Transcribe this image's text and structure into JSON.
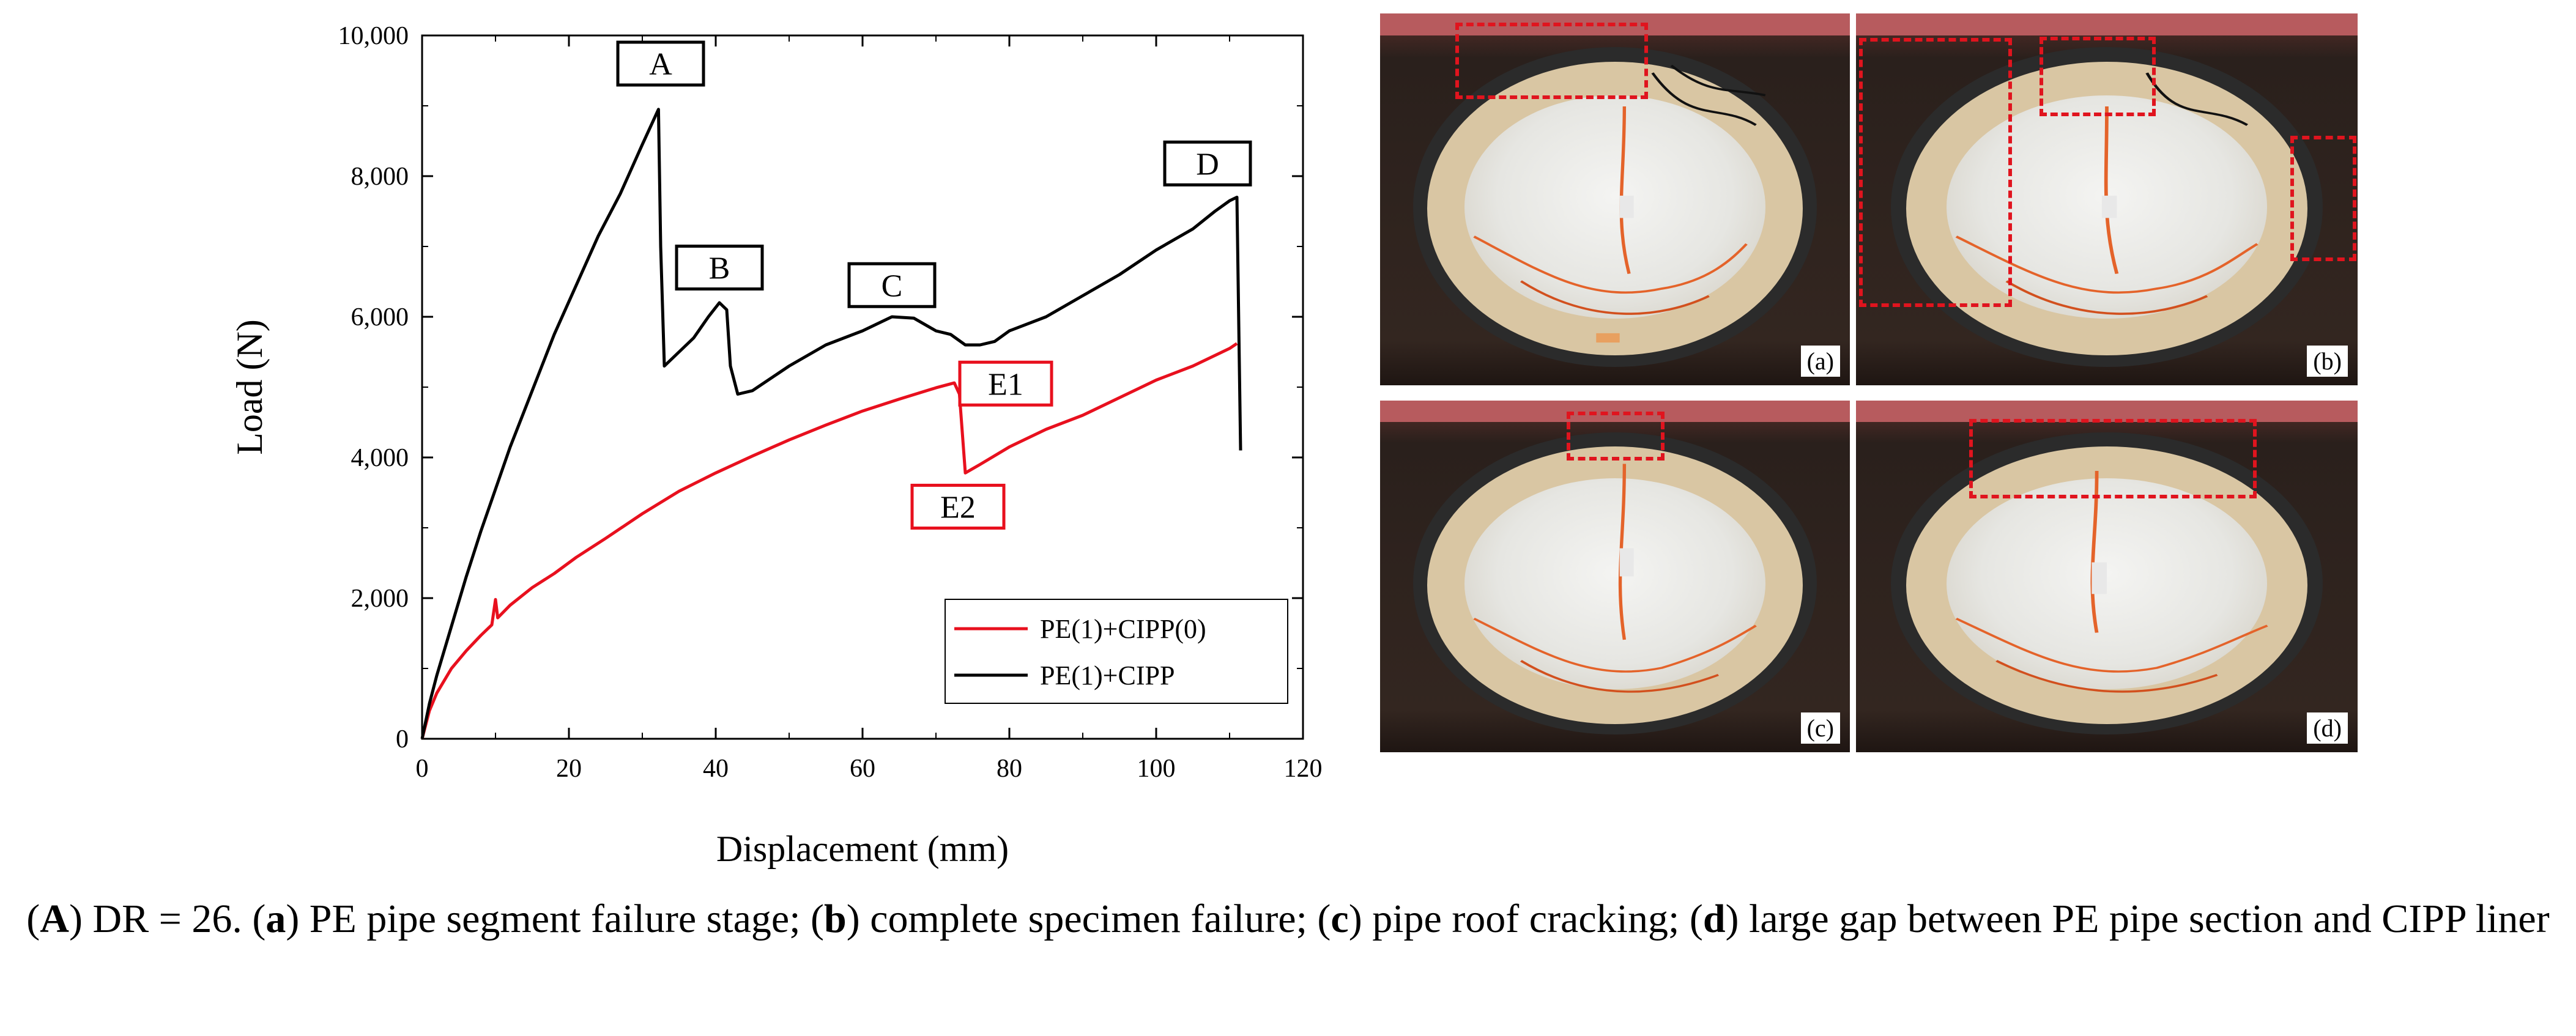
{
  "chart_data": {
    "type": "line",
    "xlabel": "Displacement (mm)",
    "ylabel": "Load (N)",
    "xlim": [
      0,
      120
    ],
    "ylim": [
      0,
      10000
    ],
    "x_ticks": [
      "0",
      "20",
      "40",
      "60",
      "80",
      "100",
      "120"
    ],
    "y_ticks": [
      "0",
      "2,000",
      "4,000",
      "6,000",
      "8,000",
      "10,000"
    ],
    "grid": false,
    "legend_position": "bottom-right",
    "series": [
      {
        "name": "PE(1)+CIPP(0)",
        "color": "#e8101e",
        "x": [
          0,
          1,
          2,
          4,
          6,
          8,
          9.5,
          10,
          10.3,
          12,
          15,
          18,
          21,
          25,
          30,
          35,
          40,
          45,
          50,
          55,
          60,
          65,
          70,
          72.5,
          73.2,
          74,
          76,
          80,
          85,
          90,
          95,
          100,
          105,
          110,
          111
        ],
        "y": [
          0,
          400,
          650,
          1000,
          1250,
          1470,
          1620,
          1980,
          1720,
          1900,
          2150,
          2350,
          2580,
          2850,
          3200,
          3520,
          3780,
          4020,
          4250,
          4460,
          4660,
          4830,
          4990,
          5060,
          4900,
          3780,
          3900,
          4150,
          4400,
          4600,
          4850,
          5100,
          5300,
          5550,
          5620
        ]
      },
      {
        "name": "PE(1)+CIPP",
        "color": "#000000",
        "x": [
          0,
          1,
          2,
          4,
          6,
          8,
          10,
          12,
          15,
          18,
          21,
          24,
          27,
          30,
          32.2,
          32.5,
          33,
          35,
          37,
          39,
          40.5,
          41.5,
          42,
          43,
          45,
          50,
          55,
          60,
          64,
          67,
          70,
          72,
          74,
          76,
          78,
          80,
          85,
          90,
          95,
          100,
          105,
          108,
          110,
          111,
          111.5
        ],
        "y": [
          0,
          500,
          900,
          1600,
          2300,
          2950,
          3550,
          4150,
          4950,
          5750,
          6450,
          7150,
          7750,
          8450,
          8950,
          7000,
          5300,
          5500,
          5700,
          6000,
          6200,
          6100,
          5300,
          4900,
          4950,
          5300,
          5600,
          5800,
          6000,
          5980,
          5800,
          5750,
          5600,
          5600,
          5650,
          5800,
          6000,
          6300,
          6600,
          6950,
          7250,
          7500,
          7650,
          7700,
          4100
        ]
      }
    ],
    "annotations": [
      {
        "label": "A",
        "x": 32.5,
        "y": 9600,
        "style": "black"
      },
      {
        "label": "B",
        "x": 40.5,
        "y": 6700,
        "style": "black"
      },
      {
        "label": "C",
        "x": 64,
        "y": 6450,
        "style": "black"
      },
      {
        "label": "D",
        "x": 107,
        "y": 8180,
        "style": "black"
      },
      {
        "label": "E1",
        "x": 79.5,
        "y": 5050,
        "style": "red"
      },
      {
        "label": "E2",
        "x": 73,
        "y": 3300,
        "style": "red"
      }
    ]
  },
  "photos": [
    {
      "caption": "(a)"
    },
    {
      "caption": "(b)"
    },
    {
      "caption": "(c)"
    },
    {
      "caption": "(d)"
    }
  ],
  "figure_caption": {
    "panel_label": "A",
    "lead": ") DR = 26. (",
    "items": [
      {
        "key": "a",
        "text": ") PE pipe segment failure stage; ("
      },
      {
        "key": "b",
        "text": ") complete specimen failure; ("
      },
      {
        "key": "c",
        "text": ") pipe roof cracking; ("
      },
      {
        "key": "d",
        "text": ") large gap between PE pipe section and CIPP liner"
      }
    ]
  }
}
